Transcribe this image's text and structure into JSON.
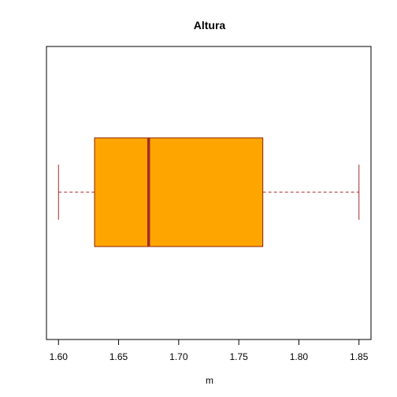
{
  "chart_data": {
    "type": "boxplot",
    "orientation": "horizontal",
    "title": "Altura",
    "xlabel": "m",
    "xlim": [
      1.59,
      1.86
    ],
    "ticks": [
      {
        "value": 1.6,
        "label": "1.60"
      },
      {
        "value": 1.65,
        "label": "1.65"
      },
      {
        "value": 1.7,
        "label": "1.70"
      },
      {
        "value": 1.75,
        "label": "1.75"
      },
      {
        "value": 1.8,
        "label": "1.80"
      },
      {
        "value": 1.85,
        "label": "1.85"
      }
    ],
    "box": {
      "whisker_low": 1.6,
      "q1": 1.63,
      "median": 1.675,
      "q3": 1.77,
      "whisker_high": 1.85
    },
    "colors": {
      "box_fill": "#FFA500",
      "box_border": "#8B2500",
      "median": "#A52A2A",
      "whisker": "#A52A2A",
      "axis": "#000000"
    }
  }
}
